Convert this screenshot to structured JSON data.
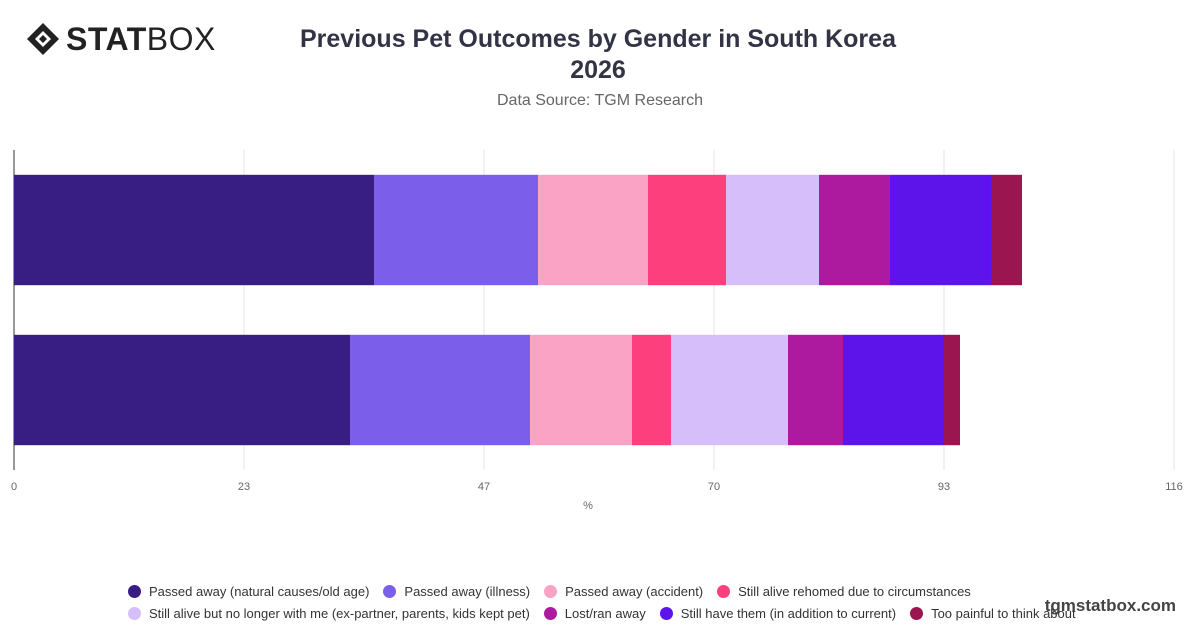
{
  "brand": {
    "logo_bold": "STAT",
    "logo_light": "BOX",
    "logo_icon": "statbox-diamond-icon",
    "watermark": "tgmstatbox.com"
  },
  "chart_data": {
    "type": "bar",
    "orientation": "horizontal",
    "stacked": true,
    "title_line1": "Previous Pet Outcomes by Gender in South Korea",
    "title_line2": "2026",
    "subtitle": "Data Source: TGM Research",
    "xlabel": "%",
    "ylabel": "",
    "xlim": [
      0,
      116
    ],
    "xticks": [
      "0",
      "23",
      "47",
      "70",
      "93",
      "116"
    ],
    "categories": [
      "",
      ""
    ],
    "grid": true,
    "legend_position": "bottom",
    "series": [
      {
        "name": "Passed away (natural causes/old age)",
        "color": "#381E82",
        "values": [
          36,
          33.6
        ]
      },
      {
        "name": "Passed away (illness)",
        "color": "#7B5FEB",
        "values": [
          16.4,
          18
        ]
      },
      {
        "name": "Passed away (accident)",
        "color": "#FBA3C5",
        "values": [
          11,
          10.2
        ]
      },
      {
        "name": "Still alive rehomed due to circumstances",
        "color": "#FD3F7E",
        "values": [
          7.8,
          3.9
        ]
      },
      {
        "name": "Still alive but no longer with me (ex-partner, parents, kids kept pet)",
        "color": "#D6BEFB",
        "values": [
          9.3,
          11.7
        ]
      },
      {
        "name": "Lost/ran away",
        "color": "#AE1A9F",
        "values": [
          7.1,
          5.5
        ]
      },
      {
        "name": "Still have them (in addition to current)",
        "color": "#5D14EA",
        "values": [
          10.1,
          10.1
        ]
      },
      {
        "name": "Too painful to think about",
        "color": "#9B1551",
        "values": [
          3.1,
          1.6
        ]
      }
    ]
  }
}
